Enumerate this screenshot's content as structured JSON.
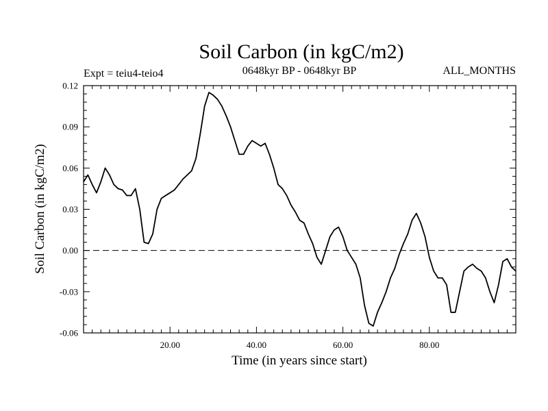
{
  "chart_data": {
    "type": "line",
    "title": "Soil Carbon (in kgC/m2)",
    "subtitle_left": "Expt = teiu4-teio4",
    "subtitle_center": "0648kyr BP - 0648kyr BP",
    "subtitle_right": "ALL_MONTHS",
    "xlabel": "Time (in years since start)",
    "ylabel": "Soil Carbon (in kgC/m2)",
    "xlim": [
      0,
      100
    ],
    "ylim": [
      -0.06,
      0.12
    ],
    "x_ticks": [
      20,
      40,
      60,
      80
    ],
    "x_tick_labels": [
      "20.00",
      "40.00",
      "60.00",
      "80.00"
    ],
    "y_ticks": [
      -0.06,
      -0.03,
      0.0,
      0.03,
      0.06,
      0.09,
      0.12
    ],
    "y_tick_labels": [
      "-0.06",
      "-0.03",
      "0.00",
      "0.03",
      "0.06",
      "0.09",
      "0.12"
    ],
    "zero_line": true,
    "series": [
      {
        "name": "Soil Carbon",
        "x": [
          0,
          1,
          2,
          3,
          4,
          5,
          6,
          7,
          8,
          9,
          10,
          11,
          12,
          13,
          14,
          15,
          16,
          17,
          18,
          19,
          20,
          21,
          22,
          23,
          24,
          25,
          26,
          27,
          28,
          29,
          30,
          31,
          32,
          33,
          34,
          35,
          36,
          37,
          38,
          39,
          40,
          41,
          42,
          43,
          44,
          45,
          46,
          47,
          48,
          49,
          50,
          51,
          52,
          53,
          54,
          55,
          56,
          57,
          58,
          59,
          60,
          61,
          62,
          63,
          64,
          65,
          66,
          67,
          68,
          69,
          70,
          71,
          72,
          73,
          74,
          75,
          76,
          77,
          78,
          79,
          80,
          81,
          82,
          83,
          84,
          85,
          86,
          87,
          88,
          89,
          90,
          91,
          92,
          93,
          94,
          95,
          96,
          97,
          98,
          99,
          100
        ],
        "values": [
          0.05,
          0.055,
          0.048,
          0.042,
          0.05,
          0.06,
          0.055,
          0.048,
          0.045,
          0.044,
          0.04,
          0.04,
          0.045,
          0.03,
          0.006,
          0.005,
          0.012,
          0.03,
          0.038,
          0.04,
          0.042,
          0.044,
          0.048,
          0.052,
          0.055,
          0.058,
          0.067,
          0.085,
          0.105,
          0.115,
          0.113,
          0.11,
          0.105,
          0.098,
          0.09,
          0.08,
          0.07,
          0.07,
          0.076,
          0.08,
          0.078,
          0.076,
          0.078,
          0.07,
          0.06,
          0.048,
          0.045,
          0.04,
          0.033,
          0.028,
          0.022,
          0.02,
          0.012,
          0.005,
          -0.005,
          -0.01,
          0.0,
          0.01,
          0.015,
          0.017,
          0.01,
          0.0,
          -0.005,
          -0.01,
          -0.02,
          -0.04,
          -0.053,
          -0.055,
          -0.045,
          -0.038,
          -0.03,
          -0.02,
          -0.013,
          -0.003,
          0.005,
          0.012,
          0.022,
          0.027,
          0.02,
          0.01,
          -0.005,
          -0.015,
          -0.02,
          -0.02,
          -0.025,
          -0.045,
          -0.045,
          -0.03,
          -0.015,
          -0.012,
          -0.01,
          -0.013,
          -0.015,
          -0.02,
          -0.03,
          -0.038,
          -0.025,
          -0.008,
          -0.006,
          -0.012,
          -0.015
        ]
      }
    ]
  }
}
